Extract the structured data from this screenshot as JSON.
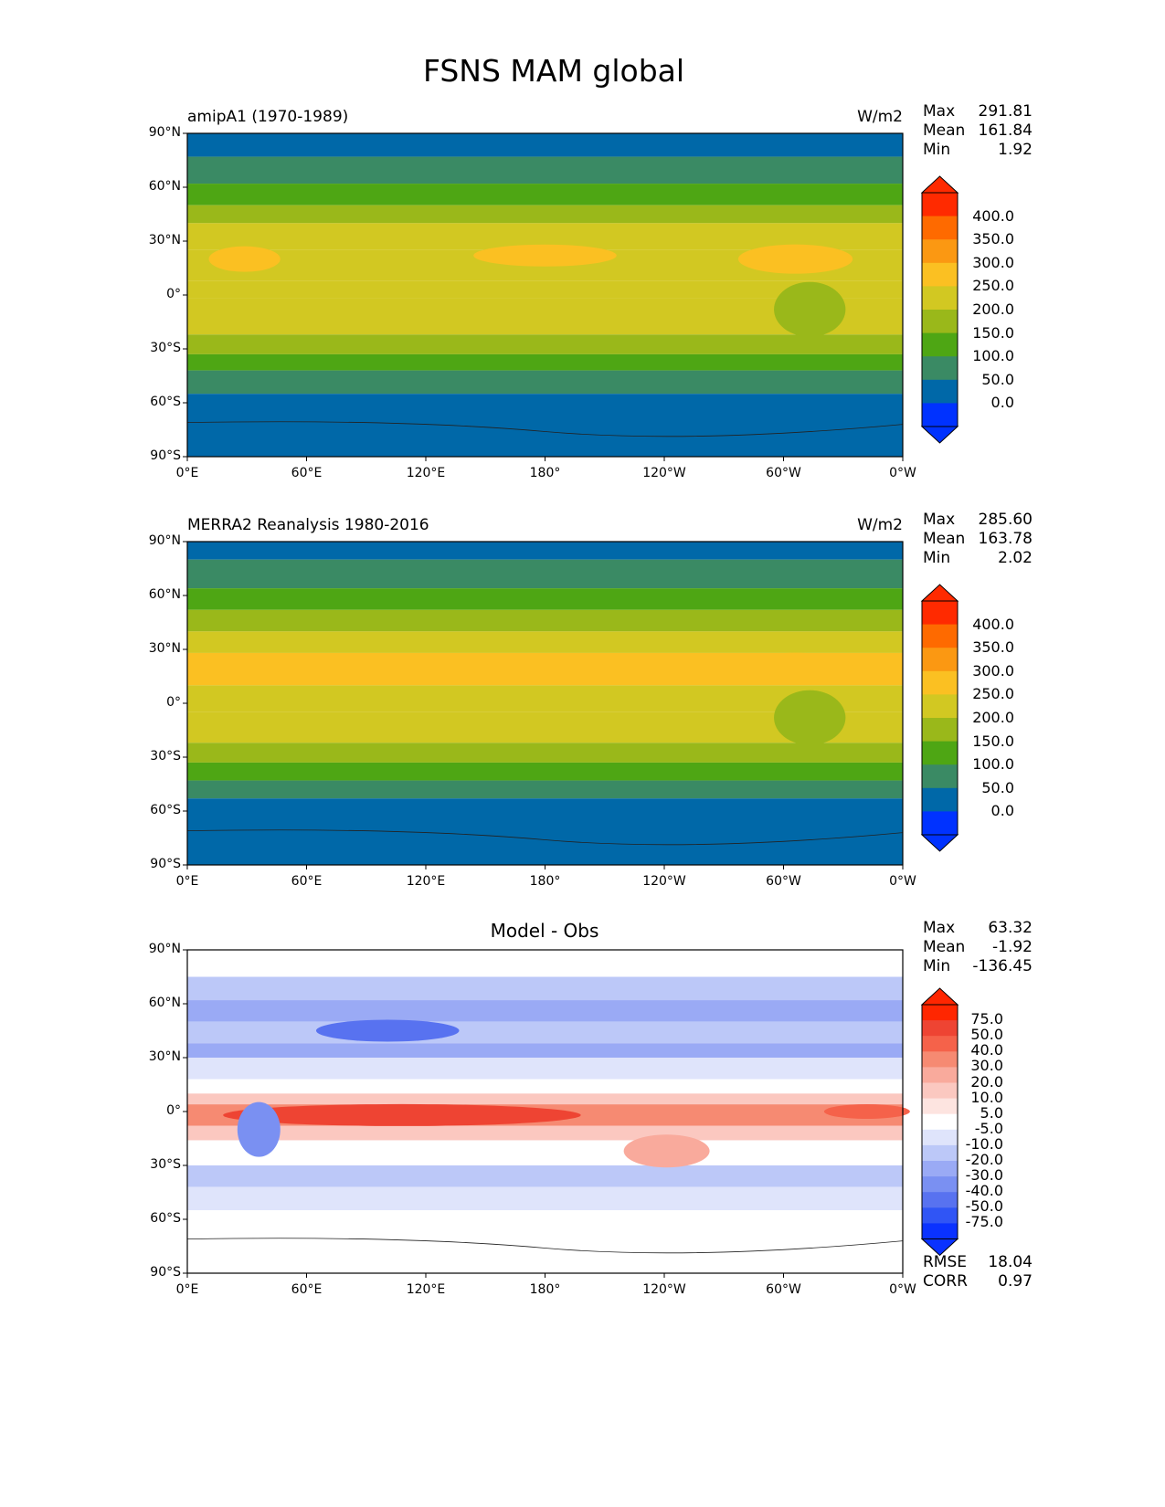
{
  "chart_data": {
    "type": "heatmap",
    "title": "FSNS MAM global",
    "panels": [
      {
        "id": "model",
        "subtitle": "amipA1 (1970-1989)",
        "units": "W/m2",
        "stats": {
          "max_label": "Max",
          "max": "291.81",
          "mean_label": "Mean",
          "mean": "161.84",
          "min_label": "Min",
          "min": "1.92"
        },
        "colorbar_labels": [
          "400.0",
          "350.0",
          "300.0",
          "250.0",
          "200.0",
          "150.0",
          "100.0",
          "50.0",
          "0.0"
        ]
      },
      {
        "id": "obs",
        "subtitle": "MERRA2 Reanalysis 1980-2016",
        "units": "W/m2",
        "stats": {
          "max_label": "Max",
          "max": "285.60",
          "mean_label": "Mean",
          "mean": "163.78",
          "min_label": "Min",
          "min": "2.02"
        },
        "colorbar_labels": [
          "400.0",
          "350.0",
          "300.0",
          "250.0",
          "200.0",
          "150.0",
          "100.0",
          "50.0",
          "0.0"
        ]
      },
      {
        "id": "diff",
        "title": "Model - Obs",
        "stats": {
          "max_label": "Max",
          "max": "63.32",
          "mean_label": "Mean",
          "mean": "-1.92",
          "min_label": "Min",
          "min": "-136.45"
        },
        "colorbar_labels": [
          "75.0",
          "50.0",
          "40.0",
          "30.0",
          "20.0",
          "10.0",
          "5.0",
          "-5.0",
          "-10.0",
          "-20.0",
          "-30.0",
          "-40.0",
          "-50.0",
          "-75.0"
        ],
        "metrics": {
          "rmse_label": "RMSE",
          "rmse": "18.04",
          "corr_label": "CORR",
          "corr": "0.97"
        }
      }
    ],
    "x_ticks": [
      "0°E",
      "60°E",
      "120°E",
      "180°",
      "120°W",
      "60°W",
      "0°W"
    ],
    "y_ticks": [
      "90°N",
      "60°N",
      "30°N",
      "0°",
      "30°S",
      "60°S",
      "90°S"
    ],
    "xlim": [
      0,
      360
    ],
    "ylim": [
      -90,
      90
    ],
    "colors": {
      "abs_levels": [
        "#ff2a00",
        "#fe6a00",
        "#fb9812",
        "#fbc022",
        "#d2c822",
        "#9ab81a",
        "#4ea614",
        "#3a8a64",
        "#0068a8",
        "#0032ff"
      ],
      "diff_levels": [
        "#ff2600",
        "#ee4433",
        "#f5624a",
        "#f68a72",
        "#f9aa9c",
        "#fbc8c0",
        "#fde4e0",
        "#ffffff",
        "#dfe4fb",
        "#bcc8f8",
        "#9aaaf5",
        "#7a90f2",
        "#5872f0",
        "#3055f5",
        "#0a32ff"
      ]
    }
  }
}
